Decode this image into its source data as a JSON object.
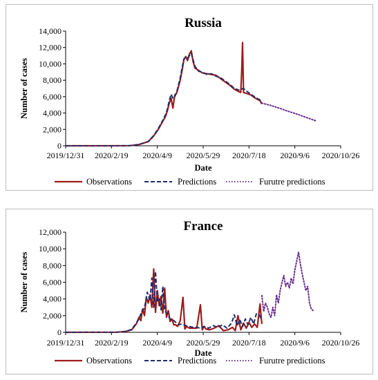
{
  "charts": [
    {
      "id": "russia",
      "type": "line",
      "title": "Russia",
      "xlabel": "Date",
      "ylabel": "Number of cases",
      "ylim": [
        0,
        14000
      ],
      "yticks": [
        0,
        2000,
        4000,
        6000,
        8000,
        10000,
        12000,
        14000
      ],
      "ytick_labels": [
        "0",
        "2,000",
        "4,000",
        "6,000",
        "8,000",
        "10,000",
        "12,000",
        "14,000"
      ],
      "xlim": [
        "2019-12-31",
        "2020-10-26"
      ],
      "xtick_labels": [
        "2019/12/31",
        "2020/2/19",
        "2020/4/9",
        "2020/5/29",
        "2020/7/18",
        "2020/9/6",
        "2020/10/26"
      ],
      "legend_position": "bottom",
      "series": [
        {
          "name": "Observations",
          "color": "#9e1b1b",
          "style": "solid",
          "x": [
            "2019-12-31",
            "2020-02-19",
            "2020-03-10",
            "2020-03-20",
            "2020-03-30",
            "2020-04-05",
            "2020-04-10",
            "2020-04-15",
            "2020-04-18",
            "2020-04-20",
            "2020-04-22",
            "2020-04-24",
            "2020-04-26",
            "2020-04-28",
            "2020-04-30",
            "2020-05-02",
            "2020-05-04",
            "2020-05-06",
            "2020-05-08",
            "2020-05-10",
            "2020-05-12",
            "2020-05-14",
            "2020-05-16",
            "2020-05-18",
            "2020-05-20",
            "2020-05-24",
            "2020-05-28",
            "2020-06-02",
            "2020-06-07",
            "2020-06-12",
            "2020-06-17",
            "2020-06-22",
            "2020-06-27",
            "2020-07-02",
            "2020-07-07",
            "2020-07-09",
            "2020-07-10",
            "2020-07-11",
            "2020-07-12",
            "2020-07-15",
            "2020-07-20",
            "2020-07-25",
            "2020-07-30",
            "2020-08-01"
          ],
          "y": [
            0,
            0,
            20,
            150,
            500,
            1200,
            2000,
            3000,
            3600,
            4300,
            5200,
            5800,
            4600,
            6200,
            6400,
            7200,
            8000,
            9200,
            10500,
            10900,
            10400,
            11200,
            11600,
            10300,
            9500,
            9200,
            8900,
            8800,
            8700,
            8600,
            8200,
            7800,
            7400,
            6900,
            6600,
            6500,
            9000,
            12600,
            6500,
            6400,
            6200,
            5800,
            5500,
            5100
          ]
        },
        {
          "name": "Predictions",
          "color": "#1f2a6b",
          "style": "dashed",
          "x": [
            "2019-12-31",
            "2020-02-19",
            "2020-03-10",
            "2020-03-20",
            "2020-03-30",
            "2020-04-05",
            "2020-04-10",
            "2020-04-15",
            "2020-04-18",
            "2020-04-20",
            "2020-04-22",
            "2020-04-24",
            "2020-04-26",
            "2020-04-28",
            "2020-04-30",
            "2020-05-02",
            "2020-05-04",
            "2020-05-06",
            "2020-05-08",
            "2020-05-10",
            "2020-05-12",
            "2020-05-14",
            "2020-05-16",
            "2020-05-18",
            "2020-05-20",
            "2020-05-24",
            "2020-05-28",
            "2020-06-02",
            "2020-06-07",
            "2020-06-12",
            "2020-06-17",
            "2020-06-22",
            "2020-06-27",
            "2020-07-02",
            "2020-07-07",
            "2020-07-12",
            "2020-07-15",
            "2020-07-20",
            "2020-07-25",
            "2020-07-30",
            "2020-08-01"
          ],
          "y": [
            0,
            0,
            20,
            160,
            520,
            1250,
            2100,
            3100,
            3800,
            4500,
            5500,
            6300,
            5800,
            6000,
            6500,
            7400,
            8300,
            9500,
            10600,
            10800,
            10700,
            11000,
            11300,
            10500,
            9700,
            9100,
            9000,
            8700,
            8800,
            8500,
            8300,
            7900,
            7500,
            7000,
            6800,
            7000,
            6700,
            6300,
            5900,
            5600,
            5200
          ]
        },
        {
          "name": "Furutre predictions",
          "color": "#6a2c91",
          "style": "dotted",
          "x": [
            "2020-08-01",
            "2020-08-10",
            "2020-08-20",
            "2020-08-30",
            "2020-09-10",
            "2020-09-20",
            "2020-09-30"
          ],
          "y": [
            5200,
            4950,
            4600,
            4200,
            3800,
            3400,
            3000
          ]
        }
      ]
    },
    {
      "id": "france",
      "type": "line",
      "title": "France",
      "xlabel": "Date",
      "ylabel": "Number of cases",
      "ylim": [
        0,
        12000
      ],
      "yticks": [
        0,
        2000,
        4000,
        6000,
        8000,
        10000,
        12000
      ],
      "ytick_labels": [
        "0",
        "2,000",
        "4,000",
        "6,000",
        "8,000",
        "10,000",
        "12,000"
      ],
      "xlim": [
        "2019-12-31",
        "2020-10-26"
      ],
      "xtick_labels": [
        "2019/12/31",
        "2020/2/19",
        "2020/4/9",
        "2020/5/29",
        "2020/7/18",
        "2020/9/6",
        "2020/10/26"
      ],
      "legend_position": "bottom",
      "series": [
        {
          "name": "Observations",
          "color": "#9e1b1b",
          "style": "solid",
          "x": [
            "2019-12-31",
            "2020-02-25",
            "2020-03-05",
            "2020-03-12",
            "2020-03-17",
            "2020-03-20",
            "2020-03-22",
            "2020-03-24",
            "2020-03-26",
            "2020-03-28",
            "2020-03-30",
            "2020-04-01",
            "2020-04-03",
            "2020-04-05",
            "2020-04-07",
            "2020-04-09",
            "2020-04-11",
            "2020-04-13",
            "2020-04-15",
            "2020-04-17",
            "2020-04-19",
            "2020-04-21",
            "2020-04-23",
            "2020-04-25",
            "2020-04-27",
            "2020-04-29",
            "2020-05-01",
            "2020-05-04",
            "2020-05-07",
            "2020-05-09",
            "2020-05-11",
            "2020-05-14",
            "2020-05-18",
            "2020-05-22",
            "2020-05-26",
            "2020-05-28",
            "2020-05-30",
            "2020-06-01",
            "2020-06-05",
            "2020-06-10",
            "2020-06-15",
            "2020-06-20",
            "2020-06-25",
            "2020-06-30",
            "2020-07-03",
            "2020-07-06",
            "2020-07-09",
            "2020-07-12",
            "2020-07-15",
            "2020-07-18",
            "2020-07-21",
            "2020-07-24",
            "2020-07-27",
            "2020-07-30",
            "2020-08-01"
          ],
          "y": [
            0,
            20,
            100,
            300,
            1000,
            1800,
            1400,
            2800,
            2000,
            4200,
            3500,
            4500,
            3000,
            7600,
            2400,
            5000,
            3200,
            4300,
            2300,
            5300,
            1800,
            2600,
            1300,
            1600,
            900,
            900,
            700,
            1400,
            4200,
            400,
            700,
            500,
            500,
            500,
            3300,
            300,
            700,
            400,
            300,
            500,
            800,
            200,
            300,
            600,
            200,
            2000,
            300,
            1100,
            500,
            1200,
            600,
            1000,
            600,
            3400,
            1000
          ]
        },
        {
          "name": "Predictions",
          "color": "#1f2a6b",
          "style": "dashed",
          "x": [
            "2019-12-31",
            "2020-02-25",
            "2020-03-05",
            "2020-03-12",
            "2020-03-17",
            "2020-03-20",
            "2020-03-23",
            "2020-03-26",
            "2020-03-29",
            "2020-04-01",
            "2020-04-03",
            "2020-04-05",
            "2020-04-07",
            "2020-04-09",
            "2020-04-11",
            "2020-04-13",
            "2020-04-15",
            "2020-04-17",
            "2020-04-20",
            "2020-04-23",
            "2020-04-26",
            "2020-04-29",
            "2020-05-02",
            "2020-05-06",
            "2020-05-10",
            "2020-05-14",
            "2020-05-18",
            "2020-05-22",
            "2020-05-26",
            "2020-05-30",
            "2020-06-04",
            "2020-06-09",
            "2020-06-14",
            "2020-06-19",
            "2020-06-24",
            "2020-06-29",
            "2020-07-02",
            "2020-07-05",
            "2020-07-08",
            "2020-07-11",
            "2020-07-14",
            "2020-07-17",
            "2020-07-20",
            "2020-07-23",
            "2020-07-26",
            "2020-07-29",
            "2020-08-01"
          ],
          "y": [
            0,
            20,
            120,
            350,
            1100,
            1600,
            2500,
            2900,
            4800,
            3800,
            6500,
            3000,
            7300,
            3600,
            4000,
            2700,
            5500,
            2600,
            2200,
            1600,
            1500,
            1200,
            900,
            1000,
            800,
            700,
            600,
            600,
            500,
            700,
            500,
            800,
            600,
            900,
            500,
            1100,
            2100,
            800,
            1500,
            700,
            1600,
            900,
            1800,
            1000,
            2200,
            2100,
            1500
          ]
        },
        {
          "name": "Furutre predictions",
          "color": "#6a2c91",
          "style": "dotted",
          "x": [
            "2020-08-01",
            "2020-08-03",
            "2020-08-05",
            "2020-08-07",
            "2020-08-09",
            "2020-08-11",
            "2020-08-13",
            "2020-08-15",
            "2020-08-17",
            "2020-08-19",
            "2020-08-21",
            "2020-08-23",
            "2020-08-25",
            "2020-08-27",
            "2020-08-29",
            "2020-08-31",
            "2020-09-02",
            "2020-09-04",
            "2020-09-06",
            "2020-09-08",
            "2020-09-10",
            "2020-09-12",
            "2020-09-14",
            "2020-09-16",
            "2020-09-18",
            "2020-09-20",
            "2020-09-22",
            "2020-09-24",
            "2020-09-26"
          ],
          "y": [
            4400,
            2500,
            3500,
            3000,
            2200,
            1800,
            3000,
            2000,
            4500,
            3500,
            5000,
            6000,
            6800,
            5500,
            6000,
            5300,
            6500,
            5800,
            7500,
            8500,
            9600,
            8200,
            7000,
            6000,
            5000,
            5500,
            3500,
            2800,
            2600
          ]
        }
      ]
    }
  ]
}
